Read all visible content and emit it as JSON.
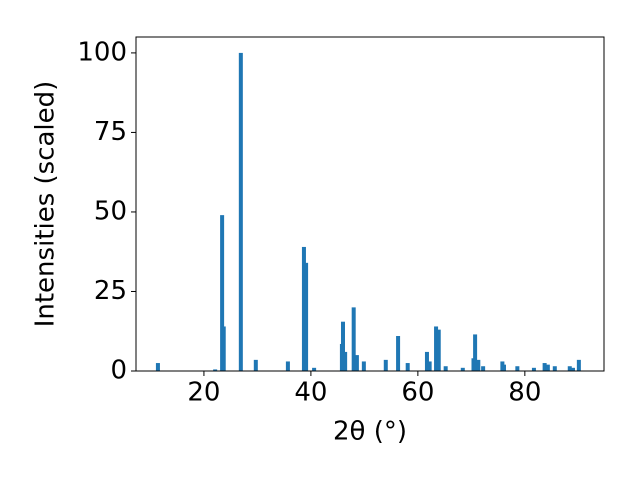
{
  "chart_data": {
    "type": "bar",
    "xlabel": "2θ (°)",
    "ylabel": "Intensities (scaled)",
    "color": "#1f77b4",
    "bar_width": 0.75,
    "x": [
      11.4,
      22.1,
      23.4,
      23.7,
      26.9,
      29.7,
      35.7,
      38.7,
      39.1,
      40.6,
      45.8,
      46.0,
      46.4,
      48.0,
      48.6,
      49.9,
      54.0,
      56.3,
      58.1,
      61.7,
      62.2,
      63.4,
      63.9,
      65.2,
      68.4,
      70.4,
      70.7,
      71.3,
      72.2,
      75.8,
      76.1,
      78.6,
      81.7,
      83.7,
      84.3,
      85.6,
      88.4,
      89.0,
      90.1
    ],
    "values": [
      2.5,
      0.5,
      49,
      14,
      100,
      3.5,
      3,
      39,
      34,
      1,
      8.5,
      15.5,
      6,
      20,
      5,
      3,
      3.5,
      11,
      2.5,
      6,
      3,
      14,
      13,
      1.5,
      1,
      4,
      11.5,
      3.5,
      1.5,
      3,
      2,
      1.5,
      1,
      2.5,
      2,
      1.5,
      1.5,
      1,
      3.5
    ],
    "xlim": [
      7.3,
      94.8
    ],
    "ylim": [
      0,
      105
    ],
    "xticks": [
      20,
      40,
      60,
      80
    ],
    "yticks": [
      0,
      25,
      50,
      75,
      100
    ]
  }
}
